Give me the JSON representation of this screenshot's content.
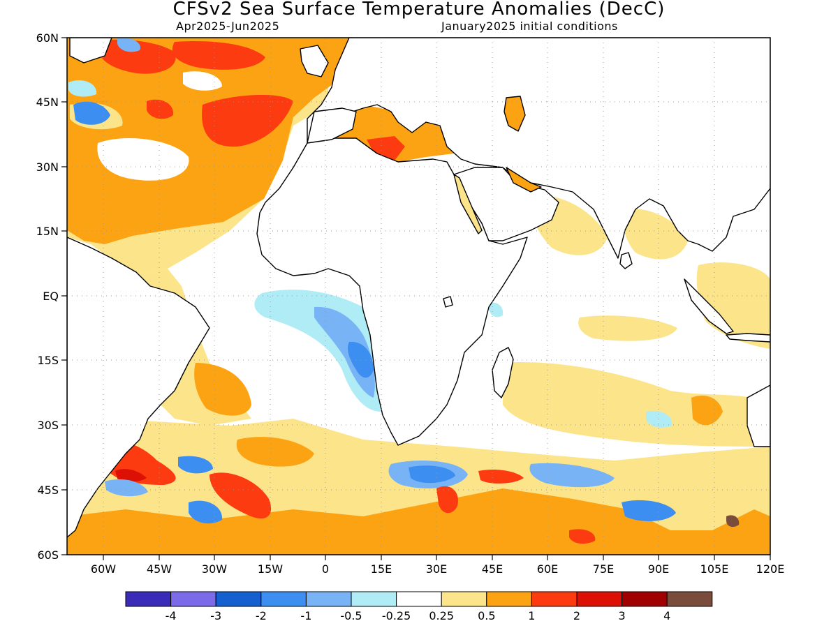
{
  "header": {
    "title": "CFSv2 Sea Surface Temperature Anomalies (DecC)",
    "period": "Apr2025-Jun2025",
    "init": "January2025 initial conditions"
  },
  "axes": {
    "lat_ticks": [
      "60N",
      "45N",
      "30N",
      "15N",
      "EQ",
      "15S",
      "30S",
      "45S",
      "60S"
    ],
    "lon_ticks": [
      "60W",
      "45W",
      "30W",
      "15W",
      "0",
      "15E",
      "30E",
      "45E",
      "60E",
      "75E",
      "90E",
      "105E",
      "120E"
    ]
  },
  "legend": {
    "labels": [
      "-4",
      "-3",
      "-2",
      "-1",
      "-0.5",
      "-0.25",
      "0.25",
      "0.5",
      "1",
      "2",
      "3",
      "4"
    ],
    "colors": [
      "#3a2bb8",
      "#7b6be8",
      "#1560d0",
      "#3c8ff0",
      "#78b4f5",
      "#b0ecf5",
      "#ffffff",
      "#fce48a",
      "#fca313",
      "#fc3c10",
      "#dc1005",
      "#a00000",
      "#7a4c3c"
    ]
  },
  "map_features": [
    "sea-surface-temperature-anomaly-field",
    "continental-coastlines",
    "dotted-graticule"
  ]
}
